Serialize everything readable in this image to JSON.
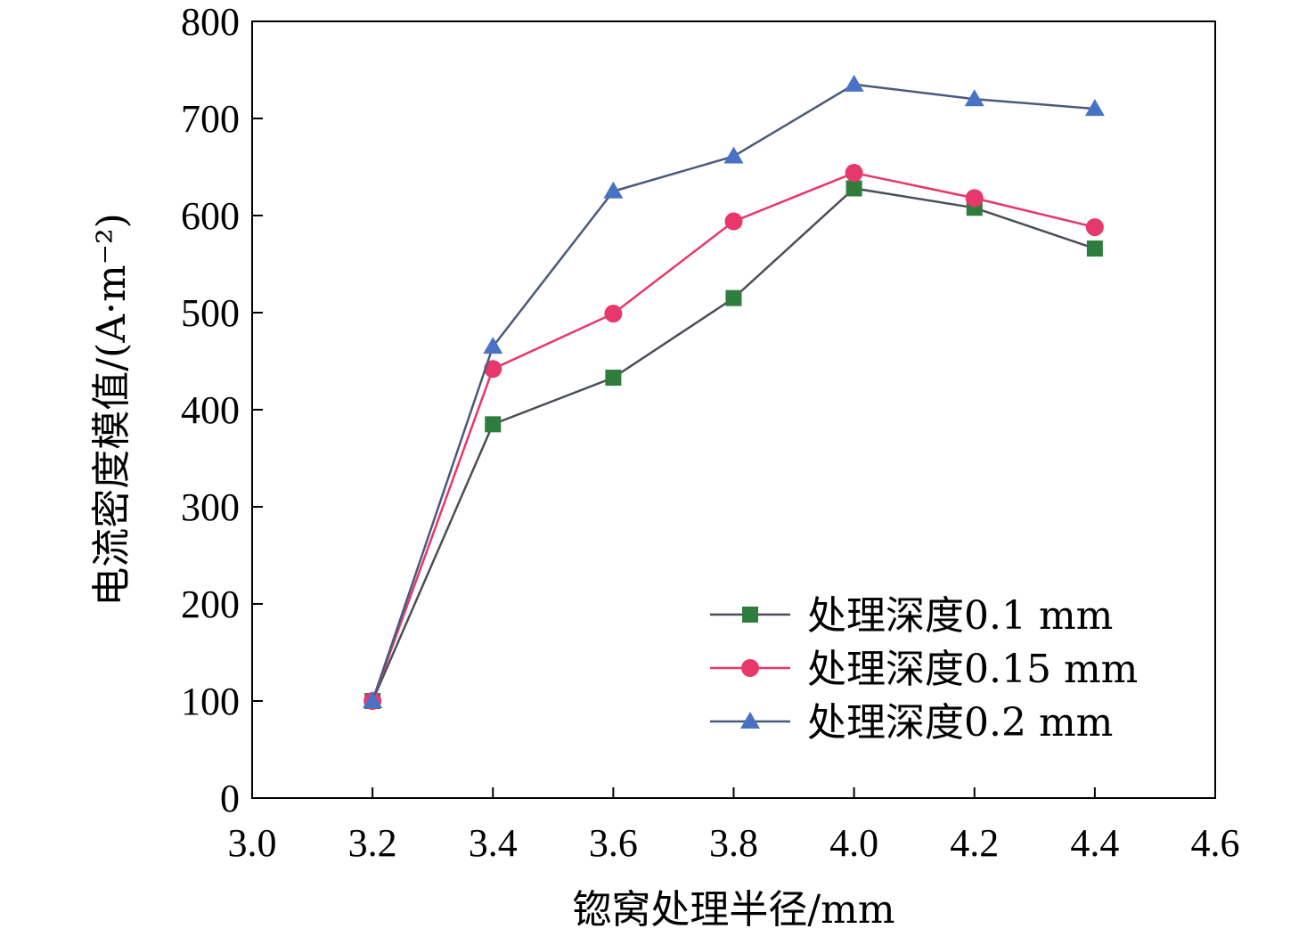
{
  "chart_data": {
    "type": "line",
    "xlabel": "锪窝处理半径/mm",
    "ylabel": "电流密度模值/(A·m⁻²)",
    "xlim": [
      3.0,
      4.6
    ],
    "ylim": [
      0,
      800
    ],
    "x_ticks": [
      3.0,
      3.2,
      3.4,
      3.6,
      3.8,
      4.0,
      4.2,
      4.4,
      4.6
    ],
    "x_tick_labels": [
      "3.0",
      "3.2",
      "3.4",
      "3.6",
      "3.8",
      "4.0",
      "4.2",
      "4.4",
      "4.6"
    ],
    "y_ticks": [
      0,
      100,
      200,
      300,
      400,
      500,
      600,
      700,
      800
    ],
    "y_tick_labels": [
      "0",
      "100",
      "200",
      "300",
      "400",
      "500",
      "600",
      "700",
      "800"
    ],
    "grid": false,
    "legend_position": "bottom-right",
    "x": [
      3.2,
      3.4,
      3.6,
      3.8,
      4.0,
      4.2,
      4.4
    ],
    "series": [
      {
        "name": "处理深度0.1 mm",
        "marker": "square",
        "line_color": "#4a4f57",
        "marker_color": "#2e7d3c",
        "values": [
          100,
          385,
          433,
          515,
          628,
          608,
          566
        ]
      },
      {
        "name": "处理深度0.15 mm",
        "marker": "circle",
        "line_color": "#e8376a",
        "marker_color": "#e8376a",
        "values": [
          100,
          442,
          499,
          594,
          644,
          618,
          588
        ]
      },
      {
        "name": "处理深度0.2 mm",
        "marker": "triangle",
        "line_color": "#4a5a7d",
        "marker_color": "#4a72c4",
        "values": [
          100,
          465,
          625,
          661,
          735,
          720,
          710
        ]
      }
    ]
  }
}
